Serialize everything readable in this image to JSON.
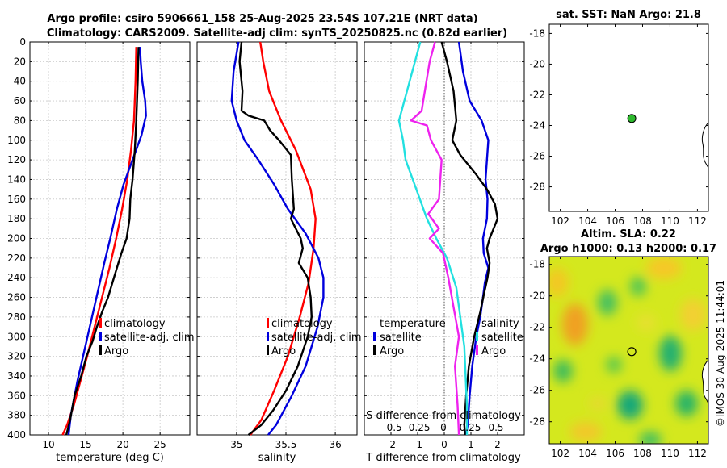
{
  "page": {
    "title_line1": "Argo profile: csiro 5906661_158 25-Aug-2025 23.54S 107.21E (NRT data)",
    "title_line2": "Climatology: CARS2009. Satellite-adj clim: synTS_20250825.nc (0.82d earlier)",
    "credit": "©IMOS 30-Aug-2025 11:44:01"
  },
  "colors": {
    "climatology": "#ff0000",
    "satellite": "#0000dd",
    "argo": "#000000",
    "temp_diff": "#22e0e0",
    "sal_diff": "#ee22ee",
    "float_marker": "#2db82d"
  },
  "chart_data": [
    {
      "id": "temp",
      "type": "line",
      "xlabel": "temperature (deg C)",
      "xlim": [
        7.5,
        29
      ],
      "xticks": [
        10,
        15,
        20,
        25
      ],
      "ylim": [
        400,
        0
      ],
      "yticks": [
        0,
        20,
        40,
        60,
        80,
        100,
        120,
        140,
        160,
        180,
        200,
        220,
        240,
        260,
        280,
        300,
        320,
        340,
        360,
        380,
        400
      ],
      "legend": [
        "climatology",
        "satellite-adj. clim",
        "Argo"
      ],
      "series": [
        {
          "name": "climatology",
          "color": "#ff0000",
          "x": [
            21.8,
            21.7,
            21.5,
            21.1,
            20.6,
            19.9,
            19.1,
            18.2,
            17.2,
            16.2,
            15.2,
            14.3,
            13.4,
            12.5,
            11.9
          ],
          "y": [
            5,
            40,
            80,
            110,
            140,
            170,
            200,
            230,
            260,
            290,
            320,
            345,
            370,
            390,
            400
          ]
        },
        {
          "name": "satellite-adj. clim",
          "color": "#0000dd",
          "x": [
            22.3,
            22.4,
            22.6,
            23.0,
            23.1,
            22.5,
            21.3,
            20.1,
            19.2,
            18.3,
            17.5,
            16.6,
            15.7,
            14.8,
            13.9,
            13.0,
            12.7
          ],
          "y": [
            5,
            20,
            40,
            60,
            75,
            95,
            120,
            145,
            170,
            200,
            225,
            255,
            285,
            315,
            345,
            380,
            400
          ]
        },
        {
          "name": "Argo",
          "color": "#000000",
          "x": [
            22.1,
            22.0,
            21.8,
            21.6,
            21.3,
            21.0,
            20.9,
            20.5,
            19.8,
            19.2,
            18.6,
            18.0,
            17.2,
            16.5,
            15.9,
            15.1,
            14.4,
            13.5,
            12.9,
            12.4
          ],
          "y": [
            5,
            40,
            80,
            110,
            140,
            160,
            180,
            200,
            215,
            230,
            245,
            260,
            275,
            290,
            305,
            320,
            340,
            360,
            385,
            400
          ]
        }
      ]
    },
    {
      "id": "sal",
      "type": "line",
      "xlabel": "salinity",
      "xlim": [
        34.6,
        36.22
      ],
      "xticks": [
        35,
        35.5,
        36
      ],
      "ylim": [
        400,
        0
      ],
      "legend": [
        "climatology",
        "satellite-adj. clim",
        "Argo"
      ],
      "series": [
        {
          "name": "climatology",
          "color": "#ff0000",
          "x": [
            35.24,
            35.27,
            35.33,
            35.45,
            35.6,
            35.75,
            35.8,
            35.78,
            35.73,
            35.64,
            35.52,
            35.38,
            35.25,
            35.14
          ],
          "y": [
            0,
            20,
            50,
            80,
            110,
            150,
            180,
            210,
            245,
            280,
            320,
            355,
            385,
            400
          ]
        },
        {
          "name": "satellite-adj. clim",
          "color": "#0000dd",
          "x": [
            35.02,
            34.97,
            34.95,
            35.0,
            35.08,
            35.22,
            35.38,
            35.52,
            35.7,
            35.83,
            35.88,
            35.88,
            35.82,
            35.7,
            35.56,
            35.4,
            35.32
          ],
          "y": [
            0,
            30,
            60,
            80,
            100,
            120,
            145,
            170,
            195,
            220,
            240,
            260,
            290,
            330,
            360,
            390,
            400
          ]
        },
        {
          "name": "Argo",
          "color": "#000000",
          "x": [
            35.05,
            35.03,
            35.06,
            35.05,
            35.12,
            35.28,
            35.34,
            35.43,
            35.55,
            35.56,
            35.58,
            35.55,
            35.6,
            35.65,
            35.67,
            35.63,
            35.72,
            35.75,
            35.76,
            35.72,
            35.62,
            35.5,
            35.37,
            35.25,
            35.12
          ],
          "y": [
            0,
            20,
            50,
            70,
            75,
            80,
            90,
            100,
            115,
            140,
            170,
            180,
            190,
            200,
            210,
            225,
            240,
            260,
            280,
            300,
            330,
            355,
            375,
            390,
            400
          ]
        }
      ]
    },
    {
      "id": "diff",
      "type": "line",
      "xlabel": "T difference from climatology",
      "xlim": [
        -3,
        3
      ],
      "xticks": [
        -2,
        -1,
        0,
        1,
        2
      ],
      "top_xlabel": "S difference from climatology",
      "top_xticks": [
        "-0.5",
        "-0.25",
        "0",
        "0.25",
        "0.5"
      ],
      "ylim": [
        400,
        0
      ],
      "legend_left": {
        "heading": "temperature",
        "items": [
          "satellite",
          "Argo"
        ]
      },
      "legend_right": {
        "heading": "salinity",
        "items": [
          "satellite",
          "Argo"
        ]
      },
      "series": [
        {
          "name": "T satellite",
          "color": "#0000dd",
          "x": [
            0.55,
            0.6,
            0.7,
            0.95,
            1.4,
            1.65,
            1.6,
            1.55,
            1.62,
            1.6,
            1.45,
            1.48,
            1.65,
            1.52,
            1.45,
            1.35,
            1.2,
            1.05,
            0.95,
            0.88,
            0.82
          ],
          "y": [
            0,
            10,
            30,
            60,
            80,
            100,
            120,
            140,
            160,
            180,
            200,
            215,
            230,
            245,
            260,
            280,
            300,
            330,
            360,
            390,
            400
          ]
        },
        {
          "name": "T Argo",
          "color": "#000000",
          "x": [
            -0.1,
            0.1,
            0.35,
            0.45,
            0.3,
            0.6,
            1.2,
            1.6,
            1.9,
            2.0,
            1.7,
            1.6,
            1.7,
            1.62,
            1.5,
            1.35,
            1.12,
            0.92,
            0.82,
            0.75,
            0.78
          ],
          "y": [
            0,
            20,
            50,
            80,
            100,
            115,
            135,
            150,
            165,
            180,
            200,
            210,
            225,
            240,
            255,
            275,
            300,
            330,
            360,
            390,
            400
          ]
        },
        {
          "name": "S satellite",
          "color": "#22e0e0",
          "x": [
            -0.9,
            -1.1,
            -1.4,
            -1.7,
            -1.55,
            -1.45,
            -1.05,
            -0.65,
            -0.3,
            0.1,
            0.45,
            0.6,
            0.75,
            0.8,
            0.85,
            0.85
          ],
          "y": [
            0,
            20,
            50,
            80,
            100,
            120,
            150,
            180,
            200,
            220,
            250,
            280,
            310,
            340,
            370,
            400
          ]
        },
        {
          "name": "S Argo",
          "color": "#ee22ee",
          "x": [
            -0.35,
            -0.55,
            -0.7,
            -0.85,
            -1.25,
            -0.65,
            -0.5,
            -0.1,
            -0.2,
            -0.6,
            -0.2,
            -0.55,
            -0.05,
            0.15,
            0.35,
            0.55,
            0.4,
            0.5,
            0.55
          ],
          "y": [
            0,
            20,
            45,
            70,
            80,
            85,
            100,
            120,
            160,
            175,
            190,
            200,
            215,
            240,
            270,
            300,
            330,
            370,
            400
          ]
        }
      ]
    },
    {
      "id": "sst_map",
      "type": "scatter",
      "title": "sat. SST: NaN Argo: 21.8",
      "xlim": [
        101.2,
        112.8
      ],
      "xticks": [
        102,
        104,
        106,
        108,
        110,
        112
      ],
      "ylim": [
        -29.6,
        -17.4
      ],
      "yticks": [
        -28,
        -26,
        -24,
        -22,
        -20,
        -18
      ],
      "float_position": {
        "lon": 107.21,
        "lat": -23.54
      }
    },
    {
      "id": "sla_map",
      "type": "heatmap",
      "title_line1": "Altim. SLA: 0.22",
      "title_line2": "Argo h1000: 0.13 h2000: 0.17",
      "xlim": [
        101.2,
        112.8
      ],
      "xticks": [
        102,
        104,
        106,
        108,
        110,
        112
      ],
      "ylim": [
        -29.4,
        -17.5
      ],
      "yticks": [
        -28,
        -26,
        -24,
        -22,
        -20,
        -18
      ],
      "float_position": {
        "lon": 107.21,
        "lat": -23.54
      }
    }
  ]
}
